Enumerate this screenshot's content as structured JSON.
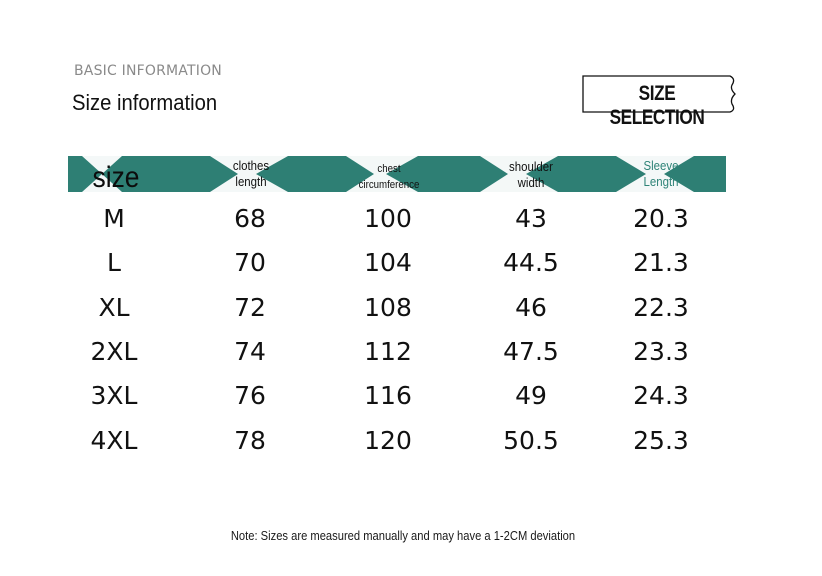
{
  "header": {
    "sub_heading": "BASIC INFORMATION",
    "heading": "Size information",
    "size_selection_label": "SIZE SELECTION"
  },
  "colors": {
    "band": "#2e7f74",
    "sleeve_header": "#2e8377"
  },
  "table": {
    "headers": {
      "size": "size",
      "clothes_length_1": "clothes",
      "clothes_length_2": "length",
      "chest_1": "chest",
      "chest_2": "circumference",
      "shoulder_1": "shoulder",
      "shoulder_2": "width",
      "sleeve_1": "Sleeve",
      "sleeve_2": "Length"
    },
    "rows": [
      {
        "size": "M",
        "clothes_length": "68",
        "chest": "100",
        "shoulder": "43",
        "sleeve": "20.3"
      },
      {
        "size": "L",
        "clothes_length": "70",
        "chest": "104",
        "shoulder": "44.5",
        "sleeve": "21.3"
      },
      {
        "size": "XL",
        "clothes_length": "72",
        "chest": "108",
        "shoulder": "46",
        "sleeve": "22.3"
      },
      {
        "size": "2XL",
        "clothes_length": "74",
        "chest": "112",
        "shoulder": "47.5",
        "sleeve": "23.3"
      },
      {
        "size": "3XL",
        "clothes_length": "76",
        "chest": "116",
        "shoulder": "49",
        "sleeve": "24.3"
      },
      {
        "size": "4XL",
        "clothes_length": "78",
        "chest": "120",
        "shoulder": "50.5",
        "sleeve": "25.3"
      }
    ]
  },
  "footer": {
    "note": "Note: Sizes are measured manually and may have a 1-2CM deviation"
  }
}
